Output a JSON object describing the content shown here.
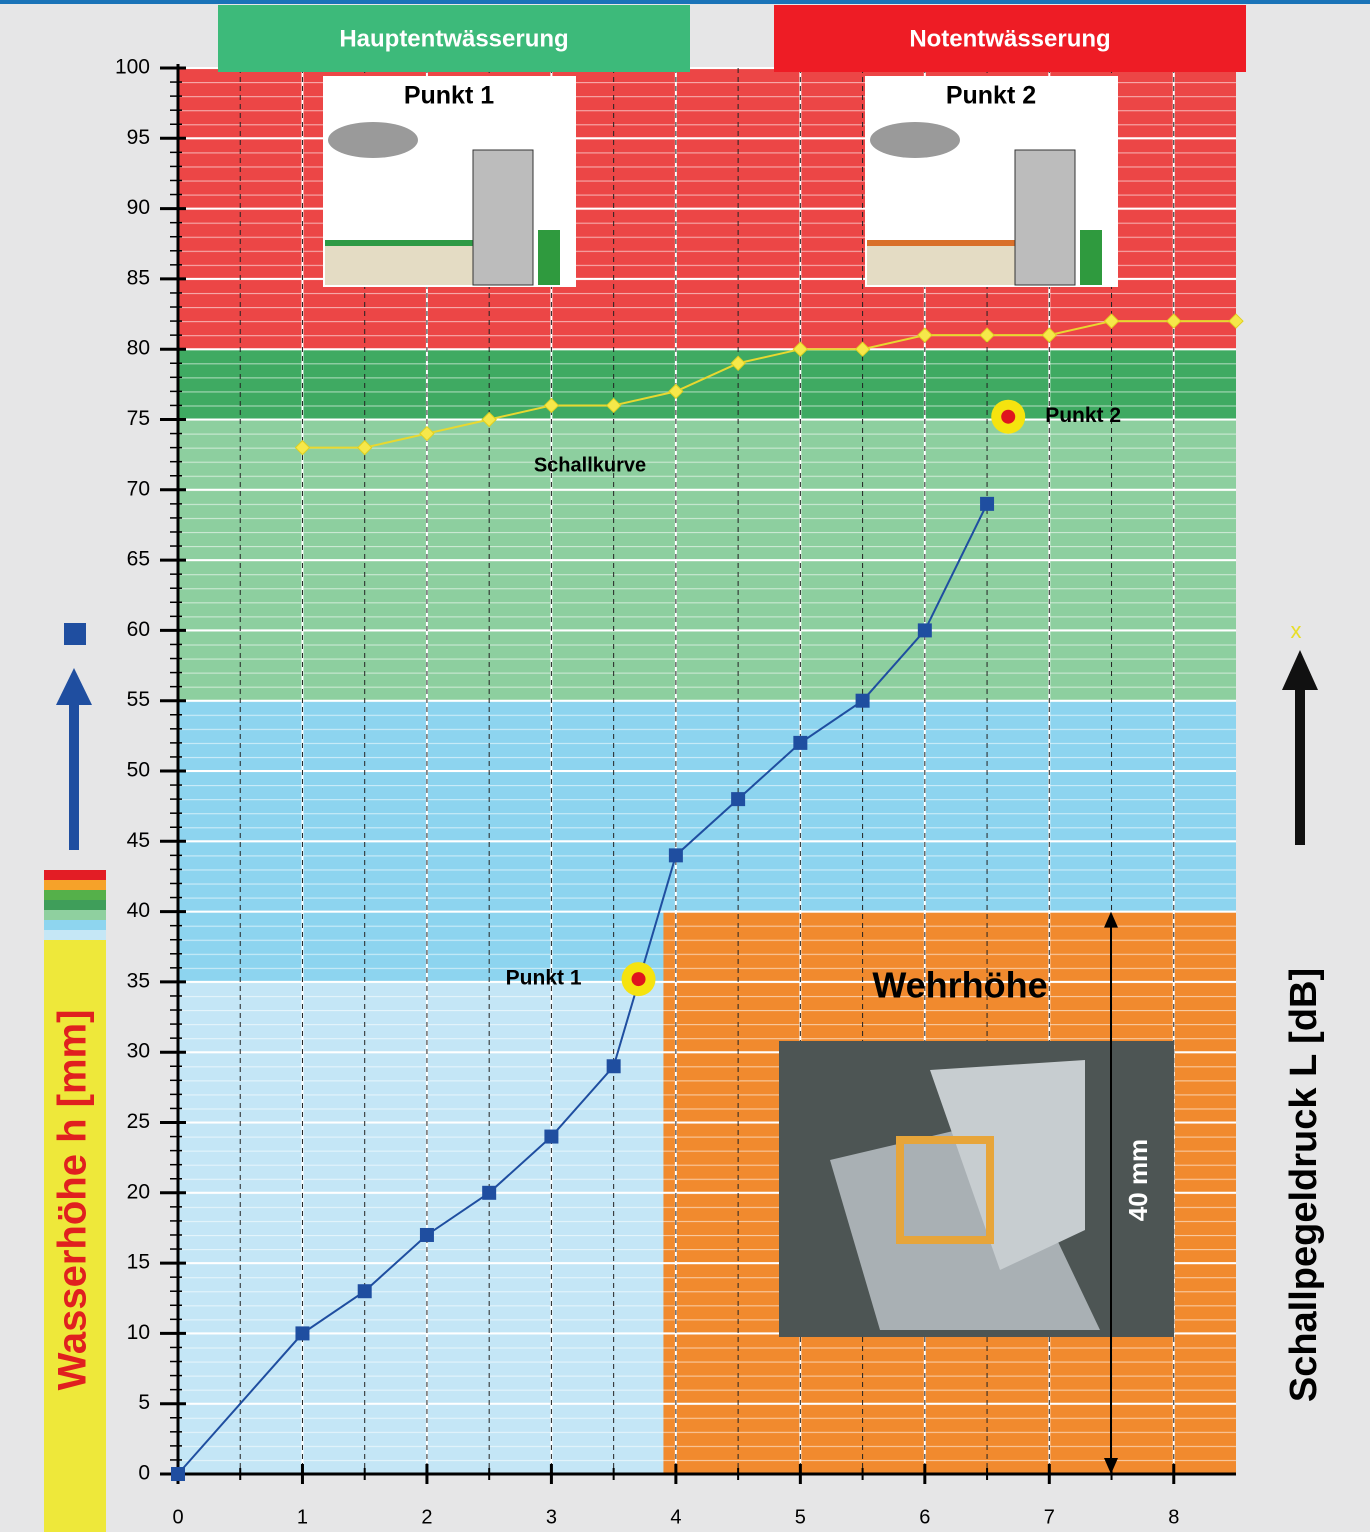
{
  "chart_data": {
    "type": "line",
    "banners": [
      {
        "text": "Hauptentwässerung",
        "color": "#3dba7a"
      },
      {
        "text": "Notentwässerung",
        "color": "#ee1c25"
      }
    ],
    "insets": [
      {
        "title": "Punkt 1"
      },
      {
        "title": "Punkt 2"
      }
    ],
    "ylabel": "Wasserhöhe h [mm]",
    "y2label": "Schallpegeldruck L [dB]",
    "y2_symbol": "x",
    "xlim": [
      0,
      8.5
    ],
    "ylim": [
      0,
      100
    ],
    "xticks": [
      0,
      1,
      2,
      3,
      4,
      5,
      6,
      7,
      8
    ],
    "x_minor_ticks": [
      0.5,
      1.5,
      2.5,
      3.5,
      4.5,
      5.5,
      6.5,
      7.5
    ],
    "yticks": [
      0,
      5,
      10,
      15,
      20,
      25,
      30,
      35,
      40,
      45,
      50,
      55,
      60,
      65,
      70,
      75,
      80,
      85,
      90,
      95,
      100
    ],
    "bands": [
      {
        "from": 0,
        "to": 35,
        "color": "#c4e6f6"
      },
      {
        "from": 35,
        "to": 55,
        "color": "#8dd4ef"
      },
      {
        "from": 55,
        "to": 75,
        "color": "#8dcf9f"
      },
      {
        "from": 75,
        "to": 80,
        "color": "#3faa62"
      },
      {
        "from": 80,
        "to": 100,
        "color": "#ec4646"
      }
    ],
    "weir": {
      "label": "Wehrhöhe",
      "dimension_label": "40 mm",
      "x_from": 3.9,
      "x_to": 8.5,
      "y_from": 0,
      "y_to": 40,
      "color": "#f18a2e"
    },
    "series": [
      {
        "x": [
          0,
          1,
          1.5,
          2,
          2.5,
          3,
          3.5,
          4,
          4.5,
          5,
          5.5,
          6,
          6.5
        ],
        "values": [
          0,
          10,
          13,
          17,
          20,
          24,
          29,
          44,
          48,
          52,
          55,
          60,
          69
        ],
        "color": "#1f4ea0",
        "marker": "square"
      },
      {
        "name": "Schallkurve",
        "x": [
          1,
          1.5,
          2,
          2.5,
          3,
          3.5,
          4,
          4.5,
          5,
          5.5,
          6,
          6.5,
          7,
          7.5,
          8,
          8.5
        ],
        "values": [
          73,
          73,
          74,
          75,
          76,
          76,
          77,
          79,
          80,
          80,
          81,
          81,
          81,
          82,
          82,
          82
        ],
        "color": "#f6e84a",
        "marker": "diamond"
      }
    ],
    "points": [
      {
        "label": "Punkt 1",
        "x": 3.7,
        "y": 35.2
      },
      {
        "label": "Punkt 2",
        "x": 6.67,
        "y": 75.2
      }
    ]
  }
}
